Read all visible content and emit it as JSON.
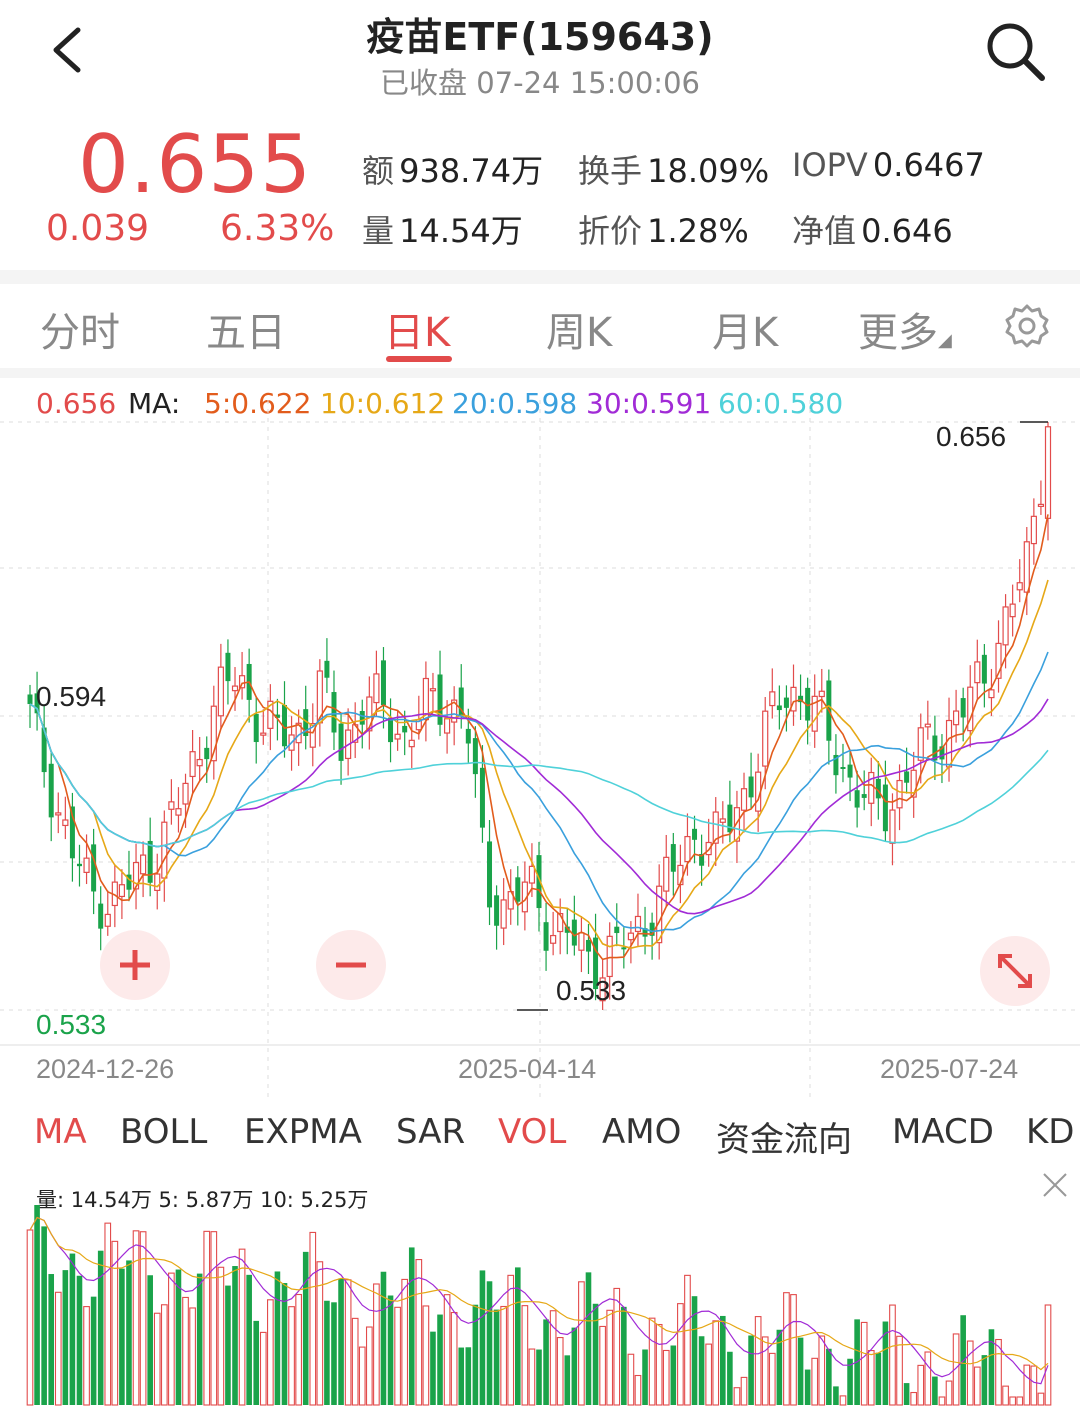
{
  "header": {
    "title": "疫苗ETF(159643)",
    "subtitle": "已收盘 07-24 15:00:06"
  },
  "quote": {
    "price": "0.655",
    "change": "0.039",
    "change_pct": "6.33%",
    "stats": [
      {
        "label": "额",
        "value": "938.74万"
      },
      {
        "label": "换手",
        "value": "18.09%"
      },
      {
        "label": "IOPV",
        "value": "0.6467"
      },
      {
        "label": "量",
        "value": "14.54万"
      },
      {
        "label": "折价",
        "value": "1.28%"
      },
      {
        "label": "净值",
        "value": "0.646"
      }
    ]
  },
  "tabs": [
    "分时",
    "五日",
    "日K",
    "周K",
    "月K",
    "更多"
  ],
  "active_tab": "日K",
  "ma_legend": {
    "close": "0.656",
    "ma_label": "MA:",
    "ma5": "5:0.622",
    "ma10": "10:0.612",
    "ma20": "20:0.598",
    "ma30": "30:0.591",
    "ma60": "60:0.580"
  },
  "colors": {
    "up": "#e24b4b",
    "down": "#1aa34a",
    "ma5": "#e25c1c",
    "ma10": "#e6a817",
    "ma20": "#3aa0dd",
    "ma30": "#a12bd6",
    "ma60": "#4fd1d9"
  },
  "price_chart": {
    "high_label": "0.656",
    "low_label": "0.533",
    "left_label": "0.594",
    "axis_min_label": "0.533",
    "x_labels": [
      "2024-12-26",
      "2025-04-14",
      "2025-07-24"
    ]
  },
  "chart_data": {
    "type": "candlestick",
    "ylim": [
      0.533,
      0.656
    ],
    "x": [
      "2024-12-26",
      "2025-04-14",
      "2025-07-24"
    ],
    "close_series_approx": [
      0.594,
      0.58,
      0.566,
      0.557,
      0.556,
      0.56,
      0.566,
      0.574,
      0.586,
      0.598,
      0.603,
      0.594,
      0.59,
      0.592,
      0.6,
      0.588,
      0.597,
      0.596,
      0.59,
      0.596,
      0.598,
      0.594,
      0.558,
      0.555,
      0.559,
      0.551,
      0.548,
      0.543,
      0.545,
      0.548,
      0.555,
      0.562,
      0.57,
      0.568,
      0.575,
      0.585,
      0.598,
      0.6,
      0.594,
      0.585,
      0.577,
      0.575,
      0.58,
      0.588,
      0.591,
      0.596,
      0.604,
      0.614,
      0.627,
      0.655
    ],
    "series_names": [
      "MA5",
      "MA10",
      "MA20",
      "MA30",
      "MA60"
    ]
  },
  "indicator_tabs": [
    "MA",
    "BOLL",
    "EXPMA",
    "SAR",
    "VOL",
    "AMO",
    "资金流向",
    "MACD",
    "KD"
  ],
  "active_indicators": [
    "MA",
    "VOL"
  ],
  "volume": {
    "legend": "量:  14.54万  5:  5.87万  10:  5.25万",
    "vol_ma5": "5.87万",
    "vol_ma10": "5.25万"
  }
}
